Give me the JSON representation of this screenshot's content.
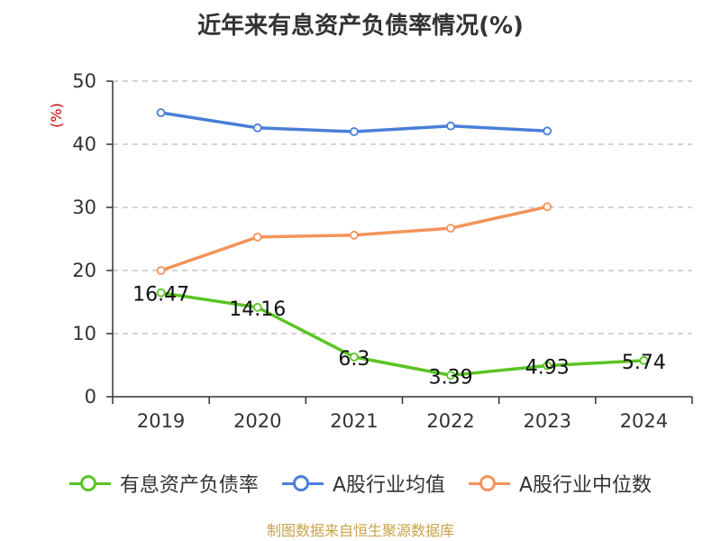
{
  "chart_data": {
    "type": "line",
    "title": "近年来有息资产负债率情况(%)",
    "ylabel": "(%)",
    "xlabel": "",
    "ylim": [
      0,
      50
    ],
    "yticks": [
      0,
      10,
      20,
      30,
      40,
      50
    ],
    "grid": "horizontal dashed",
    "legend_position": "bottom",
    "categories": [
      "2019",
      "2020",
      "2021",
      "2022",
      "2023",
      "2024"
    ],
    "series": [
      {
        "name": "有息资产负债率",
        "color": "#5bc424",
        "show_labels": true,
        "values": [
          16.47,
          14.16,
          6.3,
          3.39,
          4.93,
          5.74
        ]
      },
      {
        "name": "A股行业均值",
        "color": "#4a7fd8",
        "show_labels": false,
        "values": [
          45.0,
          42.6,
          42.0,
          42.9,
          42.1,
          null
        ]
      },
      {
        "name": "A股行业中位数",
        "color": "#f4935a",
        "show_labels": false,
        "values": [
          20.0,
          25.3,
          25.6,
          26.7,
          30.1,
          null
        ]
      }
    ]
  },
  "source_note": "制图数据来自恒生聚源数据库",
  "colors": {
    "axis": "#333333",
    "grid": "#bbbbbb",
    "ylabel": "#cc0000",
    "source": "#c8a24a"
  }
}
